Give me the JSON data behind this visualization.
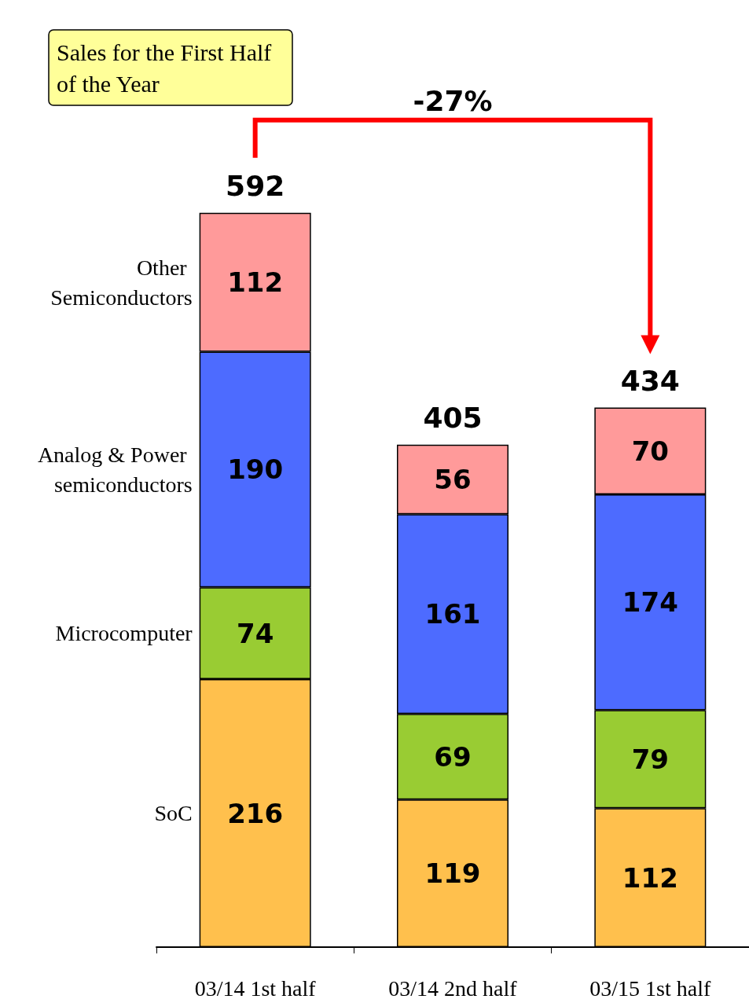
{
  "chart_data": {
    "type": "bar",
    "title": "Sales for the First Half of the Year",
    "stacked": true,
    "data_labels": true,
    "legend": false,
    "categories": [
      "03/14 1st half",
      "03/14 2nd half",
      "03/15 1st half"
    ],
    "series": [
      {
        "name": "SoC",
        "color": "#ffc04d",
        "values": [
          216,
          119,
          112
        ]
      },
      {
        "name": "Microcomputer",
        "color": "#99cc33",
        "values": [
          74,
          69,
          79
        ]
      },
      {
        "name": "Analog & Power semiconductors",
        "color": "#4d6bff",
        "values": [
          190,
          161,
          174
        ]
      },
      {
        "name": "Other Semiconductors",
        "color": "#ff9a9a",
        "values": [
          112,
          56,
          70
        ]
      }
    ],
    "totals": [
      "592",
      "405",
      "434"
    ],
    "annotations": [
      "-27%"
    ]
  }
}
